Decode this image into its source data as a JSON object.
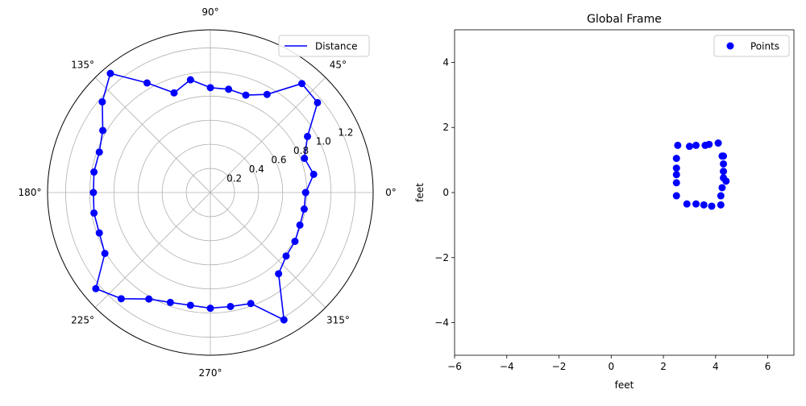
{
  "chart_data": [
    {
      "type": "line",
      "projection": "polar",
      "theta_unit": "degrees",
      "theta_tick_labels": [
        "0°",
        "45°",
        "90°",
        "135°",
        "180°",
        "225°",
        "270°",
        "315°"
      ],
      "theta_ticks": [
        0,
        45,
        90,
        135,
        180,
        225,
        270,
        315
      ],
      "r_ticks": [
        0.2,
        0.4,
        0.6,
        0.8,
        1.0,
        1.2
      ],
      "r_tick_labels": [
        "0.2",
        "0.4",
        "0.6",
        "0.8",
        "1.0",
        "1.2"
      ],
      "rlim": [
        0,
        1.35
      ],
      "grid": true,
      "legend": {
        "placement": "top-right",
        "entries": [
          "Distance"
        ]
      },
      "series": [
        {
          "name": "Distance",
          "color": "#0000ff",
          "marker": "circle",
          "theta": [
            0,
            10,
            20,
            30,
            40,
            50,
            60,
            70,
            80,
            90,
            100,
            110,
            120,
            130,
            140,
            150,
            160,
            170,
            180,
            190,
            200,
            210,
            220,
            230,
            240,
            250,
            260,
            270,
            280,
            290,
            300,
            310,
            320,
            330,
            340,
            350,
            360
          ],
          "r": [
            0.79,
            0.87,
            0.83,
            0.93,
            1.16,
            1.18,
            0.94,
            0.86,
            0.87,
            0.87,
            0.95,
            0.88,
            1.05,
            1.29,
            1.17,
            1.03,
            0.98,
            0.98,
            0.97,
            0.98,
            0.98,
            1.01,
            1.24,
            1.15,
            1.02,
            0.97,
            0.95,
            0.96,
            0.96,
            0.98,
            1.22,
            0.88,
            0.82,
            0.81,
            0.79,
            0.79,
            0.79
          ]
        }
      ]
    },
    {
      "type": "scatter",
      "title": "Global Frame",
      "xlabel": "feet",
      "ylabel": "feet",
      "xlim": [
        -6,
        7
      ],
      "ylim": [
        -5,
        5
      ],
      "x_ticks": [
        -6,
        -4,
        -2,
        0,
        2,
        4,
        6
      ],
      "x_tick_labels": [
        "−6",
        "−4",
        "−2",
        "0",
        "2",
        "4",
        "6"
      ],
      "y_ticks": [
        -4,
        -2,
        0,
        2,
        4
      ],
      "y_tick_labels": [
        "−4",
        "−2",
        "0",
        "2",
        "4"
      ],
      "grid": false,
      "legend": {
        "placement": "top-right",
        "entries": [
          "Points"
        ]
      },
      "series": [
        {
          "name": "Points",
          "color": "#0000ff",
          "marker": "circle",
          "x": [
            2.55,
            2.5,
            2.5,
            2.5,
            2.5,
            2.5,
            2.9,
            3.25,
            3.55,
            3.85,
            4.2,
            4.2,
            4.25,
            4.4,
            4.3,
            4.3,
            4.3,
            4.25,
            4.3,
            4.1,
            3.75,
            3.6,
            3.25,
            3.0
          ],
          "y": [
            1.45,
            1.05,
            0.75,
            0.55,
            0.3,
            -0.1,
            -0.35,
            -0.35,
            -0.38,
            -0.42,
            -0.38,
            -0.1,
            0.15,
            0.35,
            0.45,
            0.65,
            0.88,
            1.12,
            1.12,
            1.52,
            1.48,
            1.45,
            1.45,
            1.42
          ]
        }
      ]
    }
  ]
}
